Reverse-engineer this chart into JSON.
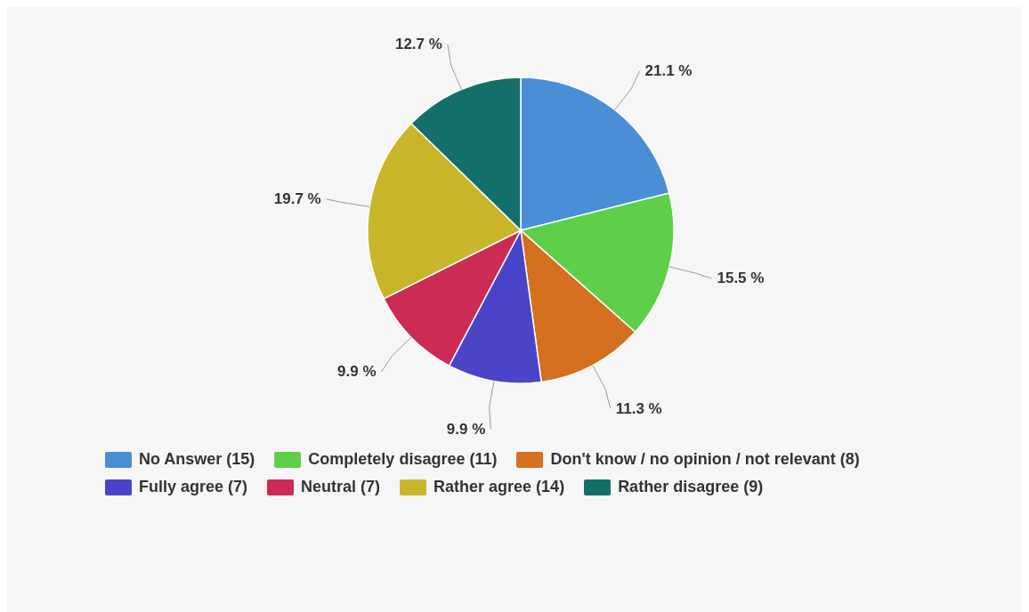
{
  "chart_data": {
    "type": "pie",
    "categories": [
      "No Answer (15)",
      "Completely disagree (11)",
      "Don't know / no opinion / not relevant (8)",
      "Fully agree (7)",
      "Neutral (7)",
      "Rather agree (14)",
      "Rather disagree (9)"
    ],
    "values": [
      21.1,
      15.5,
      11.3,
      9.9,
      9.9,
      19.7,
      12.7
    ],
    "value_labels": [
      "21.1 %",
      "15.5 %",
      "11.3 %",
      "9.9 %",
      "9.9 %",
      "19.7 %",
      "12.7 %"
    ],
    "colors": [
      "#4a8fd6",
      "#5fcf4a",
      "#d4701f",
      "#4a45c8",
      "#cc2b55",
      "#c9b52a",
      "#146f6a"
    ],
    "legend": "bottom"
  }
}
